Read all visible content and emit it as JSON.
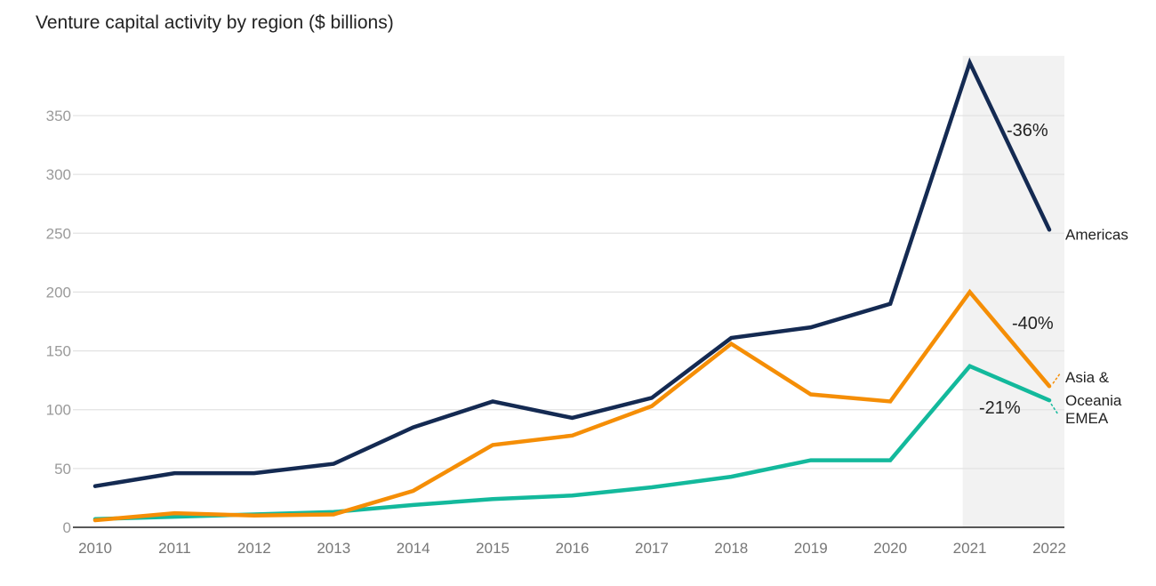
{
  "chart_data": {
    "type": "line",
    "title": "Venture capital activity by region ($ billions)",
    "xlabel": "",
    "ylabel": "",
    "x": [
      "2010",
      "2011",
      "2012",
      "2013",
      "2014",
      "2015",
      "2016",
      "2017",
      "2018",
      "2019",
      "2020",
      "2021",
      "2022"
    ],
    "yticks": [
      0,
      50,
      100,
      150,
      200,
      250,
      300,
      350
    ],
    "ylim": [
      0,
      400
    ],
    "grid": true,
    "legend": "inline-right",
    "highlight_range": [
      "2021",
      "2022"
    ],
    "series": [
      {
        "name": "Americas",
        "label": "Americas",
        "color": "#142a52",
        "values": [
          35,
          46,
          46,
          54,
          85,
          107,
          93,
          110,
          161,
          170,
          190,
          395,
          253
        ],
        "change_annotation": "-36%"
      },
      {
        "name": "Asia & Oceania",
        "label_lines": [
          "Asia &",
          "Oceania"
        ],
        "color": "#f58e06",
        "values": [
          6,
          12,
          10,
          11,
          31,
          70,
          78,
          103,
          156,
          113,
          107,
          200,
          120
        ],
        "change_annotation": "-40%"
      },
      {
        "name": "EMEA",
        "label": "EMEA",
        "color": "#13b99c",
        "values": [
          7,
          9,
          11,
          13,
          19,
          24,
          27,
          34,
          43,
          57,
          57,
          137,
          108
        ],
        "change_annotation": "-21%"
      }
    ]
  }
}
